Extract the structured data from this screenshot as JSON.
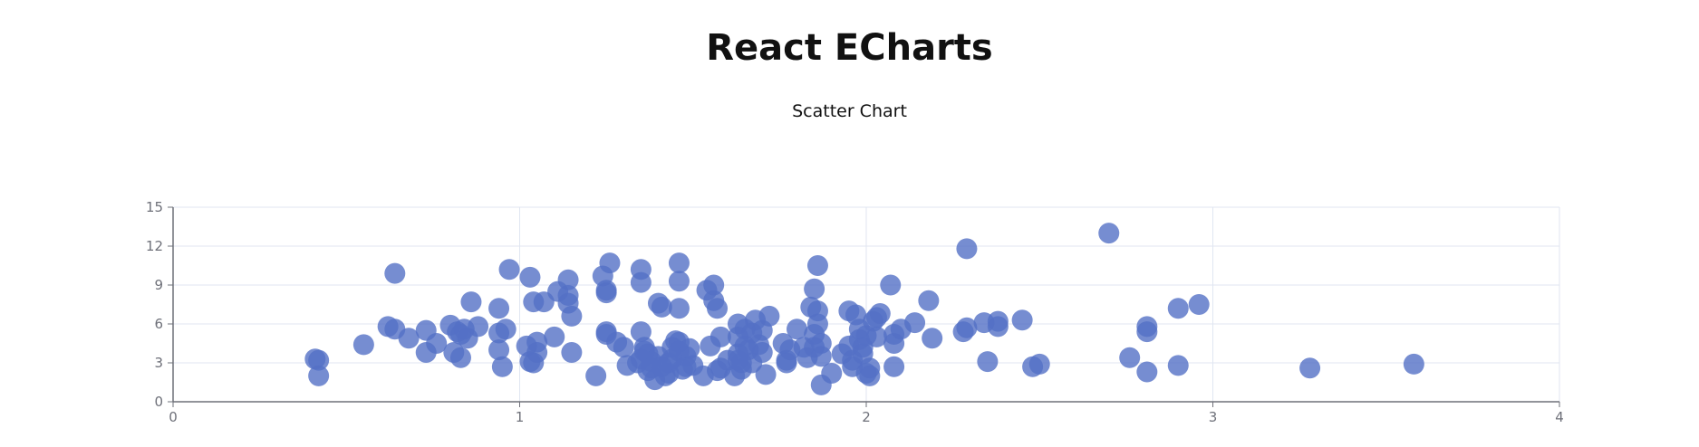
{
  "page": {
    "title": "React ECharts",
    "subtitle": "Scatter Chart"
  },
  "chart_data": {
    "type": "scatter",
    "xlim": [
      0,
      4
    ],
    "ylim": [
      0,
      15
    ],
    "xticks": [
      0,
      1,
      2,
      3,
      4
    ],
    "yticks": [
      0,
      3,
      6,
      9,
      12,
      15
    ],
    "grid": true,
    "point_color": "#5470c6",
    "points": [
      [
        0.41,
        3.3
      ],
      [
        0.42,
        3.2
      ],
      [
        0.42,
        2.0
      ],
      [
        0.55,
        4.4
      ],
      [
        0.62,
        5.8
      ],
      [
        0.64,
        5.6
      ],
      [
        0.64,
        9.9
      ],
      [
        0.68,
        4.9
      ],
      [
        0.73,
        5.5
      ],
      [
        0.73,
        3.8
      ],
      [
        0.76,
        4.5
      ],
      [
        0.8,
        5.9
      ],
      [
        0.81,
        3.8
      ],
      [
        0.82,
        5.4
      ],
      [
        0.83,
        5.2
      ],
      [
        0.83,
        3.4
      ],
      [
        0.84,
        5.6
      ],
      [
        0.85,
        4.9
      ],
      [
        0.86,
        7.7
      ],
      [
        0.88,
        5.8
      ],
      [
        0.94,
        7.2
      ],
      [
        0.94,
        5.3
      ],
      [
        0.94,
        4.0
      ],
      [
        0.95,
        2.7
      ],
      [
        0.96,
        5.6
      ],
      [
        0.97,
        10.2
      ],
      [
        1.02,
        4.3
      ],
      [
        1.03,
        9.6
      ],
      [
        1.03,
        3.1
      ],
      [
        1.04,
        3.0
      ],
      [
        1.04,
        7.7
      ],
      [
        1.05,
        4.6
      ],
      [
        1.05,
        3.8
      ],
      [
        1.07,
        7.7
      ],
      [
        1.1,
        5.0
      ],
      [
        1.11,
        8.5
      ],
      [
        1.14,
        9.4
      ],
      [
        1.14,
        7.6
      ],
      [
        1.14,
        8.2
      ],
      [
        1.15,
        6.6
      ],
      [
        1.15,
        3.8
      ],
      [
        1.22,
        2.0
      ],
      [
        1.24,
        9.7
      ],
      [
        1.25,
        8.6
      ],
      [
        1.25,
        8.4
      ],
      [
        1.25,
        5.2
      ],
      [
        1.25,
        5.4
      ],
      [
        1.26,
        10.7
      ],
      [
        1.28,
        4.6
      ],
      [
        1.3,
        4.2
      ],
      [
        1.31,
        2.8
      ],
      [
        1.34,
        3.0
      ],
      [
        1.35,
        10.2
      ],
      [
        1.35,
        9.2
      ],
      [
        1.35,
        5.4
      ],
      [
        1.35,
        3.3
      ],
      [
        1.36,
        4.2
      ],
      [
        1.36,
        3.9
      ],
      [
        1.37,
        2.4
      ],
      [
        1.37,
        3.7
      ],
      [
        1.38,
        2.6
      ],
      [
        1.38,
        3.1
      ],
      [
        1.39,
        1.7
      ],
      [
        1.4,
        7.6
      ],
      [
        1.4,
        3.5
      ],
      [
        1.41,
        7.3
      ],
      [
        1.41,
        2.7
      ],
      [
        1.42,
        2.0
      ],
      [
        1.43,
        3.0
      ],
      [
        1.43,
        2.2
      ],
      [
        1.44,
        3.3
      ],
      [
        1.44,
        4.2
      ],
      [
        1.45,
        4.7
      ],
      [
        1.46,
        10.7
      ],
      [
        1.46,
        9.3
      ],
      [
        1.46,
        7.2
      ],
      [
        1.46,
        4.6
      ],
      [
        1.46,
        3.9
      ],
      [
        1.47,
        2.5
      ],
      [
        1.48,
        3.5
      ],
      [
        1.48,
        2.7
      ],
      [
        1.49,
        4.1
      ],
      [
        1.5,
        2.8
      ],
      [
        1.53,
        2.0
      ],
      [
        1.54,
        8.6
      ],
      [
        1.55,
        4.3
      ],
      [
        1.56,
        7.8
      ],
      [
        1.56,
        9.0
      ],
      [
        1.57,
        7.2
      ],
      [
        1.57,
        2.4
      ],
      [
        1.58,
        2.6
      ],
      [
        1.58,
        5.0
      ],
      [
        1.6,
        3.2
      ],
      [
        1.62,
        2.0
      ],
      [
        1.63,
        6.0
      ],
      [
        1.63,
        5.0
      ],
      [
        1.63,
        3.2
      ],
      [
        1.63,
        3.7
      ],
      [
        1.64,
        3.0
      ],
      [
        1.64,
        2.5
      ],
      [
        1.65,
        4.3
      ],
      [
        1.65,
        5.6
      ],
      [
        1.66,
        4.0
      ],
      [
        1.67,
        3.0
      ],
      [
        1.67,
        5.3
      ],
      [
        1.68,
        6.3
      ],
      [
        1.69,
        4.4
      ],
      [
        1.7,
        3.8
      ],
      [
        1.7,
        5.5
      ],
      [
        1.71,
        2.1
      ],
      [
        1.72,
        6.6
      ],
      [
        1.76,
        4.5
      ],
      [
        1.77,
        3.0
      ],
      [
        1.77,
        3.2
      ],
      [
        1.78,
        4.0
      ],
      [
        1.8,
        5.6
      ],
      [
        1.82,
        4.2
      ],
      [
        1.83,
        3.4
      ],
      [
        1.84,
        7.3
      ],
      [
        1.85,
        8.7
      ],
      [
        1.85,
        5.2
      ],
      [
        1.85,
        4.2
      ],
      [
        1.86,
        10.5
      ],
      [
        1.86,
        7.0
      ],
      [
        1.86,
        6.0
      ],
      [
        1.87,
        4.5
      ],
      [
        1.87,
        3.5
      ],
      [
        1.87,
        1.3
      ],
      [
        1.9,
        2.2
      ],
      [
        1.93,
        3.7
      ],
      [
        1.95,
        7.0
      ],
      [
        1.95,
        4.3
      ],
      [
        1.96,
        2.7
      ],
      [
        1.96,
        3.2
      ],
      [
        1.97,
        6.7
      ],
      [
        1.98,
        5.6
      ],
      [
        1.98,
        4.8
      ],
      [
        1.99,
        4.2
      ],
      [
        1.99,
        3.7
      ],
      [
        2.0,
        2.2
      ],
      [
        2.0,
        5.1
      ],
      [
        2.01,
        2.6
      ],
      [
        2.01,
        2.0
      ],
      [
        2.02,
        6.2
      ],
      [
        2.03,
        6.5
      ],
      [
        2.03,
        5.0
      ],
      [
        2.04,
        6.8
      ],
      [
        2.07,
        9.0
      ],
      [
        2.08,
        5.2
      ],
      [
        2.08,
        4.5
      ],
      [
        2.08,
        2.7
      ],
      [
        2.1,
        5.6
      ],
      [
        2.14,
        6.1
      ],
      [
        2.18,
        7.8
      ],
      [
        2.19,
        4.9
      ],
      [
        2.28,
        5.4
      ],
      [
        2.29,
        11.8
      ],
      [
        2.29,
        5.7
      ],
      [
        2.34,
        6.1
      ],
      [
        2.35,
        3.1
      ],
      [
        2.38,
        6.2
      ],
      [
        2.38,
        5.8
      ],
      [
        2.45,
        6.3
      ],
      [
        2.48,
        2.7
      ],
      [
        2.5,
        2.9
      ],
      [
        2.7,
        13.0
      ],
      [
        2.76,
        3.4
      ],
      [
        2.81,
        2.3
      ],
      [
        2.81,
        5.8
      ],
      [
        2.81,
        5.4
      ],
      [
        2.9,
        7.2
      ],
      [
        2.9,
        2.8
      ],
      [
        2.96,
        7.5
      ],
      [
        3.28,
        2.6
      ],
      [
        3.58,
        2.9
      ]
    ]
  }
}
